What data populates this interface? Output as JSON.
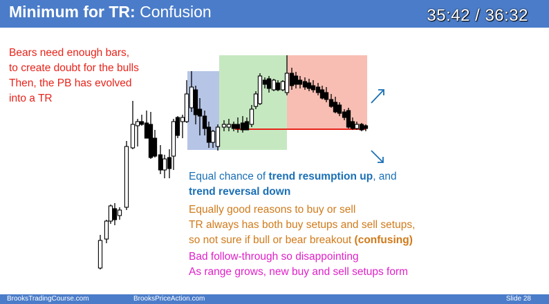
{
  "header": {
    "title_bold": "Minimum for TR:",
    "title_rest": "Confusion",
    "timer": "35:42 / 36:32"
  },
  "notes": {
    "red": [
      "Bears need enough bars,",
      "to create doubt for the bulls",
      "Then, the PB has evolved",
      "into a TR"
    ],
    "blue_line1_pre": "Equal chance of ",
    "blue_line1_bold": "trend resumption up",
    "blue_line1_post": ", and",
    "blue_line2_bold": "trend reversal down",
    "orange": [
      "Equally good reasons to buy or sell",
      "TR always has both buy setups and sell setups,"
    ],
    "orange_last_pre": "so not sure if bull or bear breakout ",
    "orange_last_bold": "(confusing)",
    "magenta": [
      "Bad follow-through so disappointing",
      "As range grows, new buy and sell setups form"
    ]
  },
  "colors": {
    "header_bg": "#4a7cc9",
    "red": "#e8231a",
    "blue": "#1a6fb5",
    "orange": "#d07a1a",
    "magenta": "#e020c8",
    "zone_blue": "#8fa6d9",
    "zone_green": "#a8dca0",
    "zone_red": "#f5a89a"
  },
  "icons": [
    "arrow-up-right-icon",
    "arrow-down-right-icon"
  ],
  "footer": {
    "left1": "BrooksTradingCourse.com",
    "left2": "BrooksPriceAction.com",
    "slide": "Slide  28"
  }
}
